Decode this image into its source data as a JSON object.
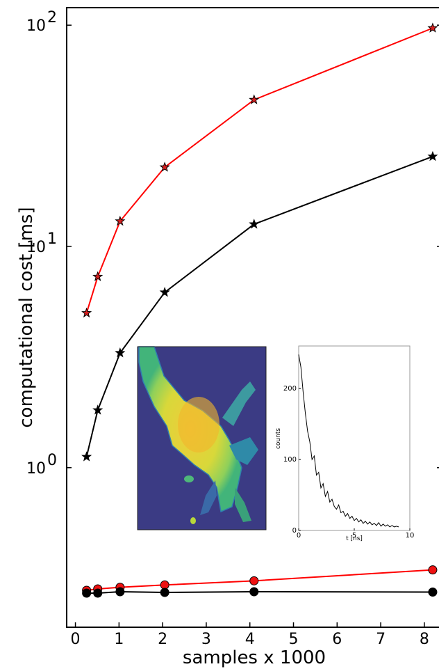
{
  "chart_data": {
    "type": "line",
    "xlabel": "samples x 1000",
    "ylabel": "computational cost [ms]",
    "xlim": [
      -0.2,
      8.4
    ],
    "ylim": [
      0.19,
      120
    ],
    "yscale": "log",
    "grid": false,
    "x_ticks": [
      0,
      1,
      2,
      3,
      4,
      5,
      6,
      7,
      8
    ],
    "y_ticks": [
      {
        "value": 1,
        "base": "10",
        "exp": "0"
      },
      {
        "value": 10,
        "base": "10",
        "exp": "1"
      },
      {
        "value": 100,
        "base": "10",
        "exp": "2"
      }
    ],
    "colors": {
      "red": "#ff0000",
      "black": "#000000",
      "red_fill": "#ee1111"
    },
    "series": [
      {
        "color": "#ff0000",
        "marker": "star",
        "marker_fill": "#d62020",
        "x": [
          0.256,
          0.512,
          1.024,
          2.048,
          4.096,
          8.192
        ],
        "y": [
          5.0,
          7.3,
          13.0,
          22.8,
          46.0,
          97.0
        ]
      },
      {
        "color": "#000000",
        "marker": "star",
        "marker_fill": "#000000",
        "x": [
          0.256,
          0.512,
          1.024,
          2.048,
          4.096,
          8.192
        ],
        "y": [
          1.12,
          1.82,
          3.3,
          6.2,
          12.6,
          25.5
        ]
      },
      {
        "color": "#ff0000",
        "marker": "circle",
        "marker_fill": "#ee1111",
        "x": [
          0.256,
          0.512,
          1.024,
          2.048,
          4.096,
          8.192
        ],
        "y": [
          0.279,
          0.283,
          0.288,
          0.295,
          0.308,
          0.345
        ]
      },
      {
        "color": "#000000",
        "marker": "circle",
        "marker_fill": "#000000",
        "x": [
          0.256,
          0.512,
          1.024,
          2.048,
          4.096,
          8.192
        ],
        "y": [
          0.271,
          0.271,
          0.275,
          0.273,
          0.275,
          0.274
        ]
      }
    ],
    "inset_decay": {
      "type": "line",
      "xlabel": "t [ns]",
      "ylabel": "counts",
      "xlim": [
        0,
        10
      ],
      "ylim": [
        0,
        260
      ],
      "x_ticks": [
        0,
        5,
        10
      ],
      "y_ticks": [
        0,
        100,
        200
      ],
      "x": [
        0.0,
        0.2,
        0.4,
        0.6,
        0.8,
        1.0,
        1.2,
        1.4,
        1.6,
        1.8,
        2.0,
        2.2,
        2.4,
        2.6,
        2.8,
        3.0,
        3.2,
        3.4,
        3.6,
        3.8,
        4.0,
        4.2,
        4.4,
        4.6,
        4.8,
        5.0,
        5.2,
        5.4,
        5.6,
        5.8,
        6.0,
        6.2,
        6.4,
        6.6,
        6.8,
        7.0,
        7.2,
        7.4,
        7.6,
        7.8,
        8.0,
        8.2,
        8.4,
        8.6,
        8.8,
        9.0
      ],
      "y": [
        248,
        230,
        195,
        165,
        140,
        125,
        100,
        105,
        78,
        82,
        60,
        66,
        48,
        55,
        40,
        44,
        34,
        30,
        36,
        25,
        27,
        20,
        24,
        17,
        20,
        14,
        17,
        12,
        15,
        10,
        13,
        9,
        12,
        8,
        10,
        7,
        11,
        6,
        9,
        6,
        8,
        5,
        7,
        5,
        6,
        5
      ]
    }
  }
}
